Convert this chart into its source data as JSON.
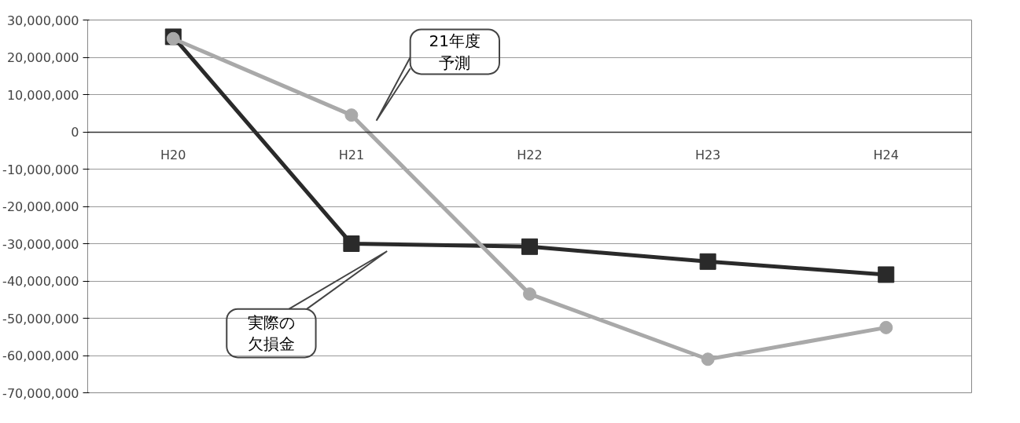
{
  "chart_data": {
    "type": "line",
    "categories": [
      "H20",
      "H21",
      "H22",
      "H23",
      "H24"
    ],
    "series": [
      {
        "color": "#a9a9a9",
        "marker": "circle",
        "values": [
          25000000,
          4500000,
          -43500000,
          -61000000,
          -52500000
        ]
      },
      {
        "color": "#2a2a2a",
        "marker": "square",
        "values": [
          25500000,
          -30000000,
          -30800000,
          -34800000,
          -38300000
        ]
      }
    ],
    "ylim": [
      -70000000,
      30000000
    ],
    "yticks": [
      {
        "value": -70000000,
        "label": "-70,000,000"
      },
      {
        "value": -60000000,
        "label": "-60,000,000"
      },
      {
        "value": -50000000,
        "label": "-50,000,000"
      },
      {
        "value": -40000000,
        "label": "-40,000,000"
      },
      {
        "value": -30000000,
        "label": "-30,000,000"
      },
      {
        "value": -20000000,
        "label": "-20,000,000"
      },
      {
        "value": -10000000,
        "label": "-10,000,000"
      },
      0,
      {
        "value": 10000000,
        "label": "10,000,000"
      },
      {
        "value": 20000000,
        "label": "20,000,000"
      },
      {
        "value": 30000000,
        "label": "30,000,000"
      }
    ],
    "grid": "y",
    "annotations": [
      "21年度予測",
      "実際の欠損金"
    ]
  }
}
